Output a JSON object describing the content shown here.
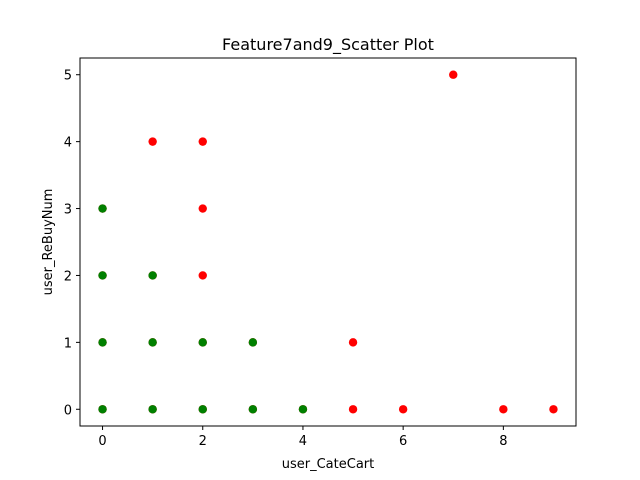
{
  "chart_data": {
    "type": "scatter",
    "title": "Feature7and9_Scatter Plot",
    "xlabel": "user_CateCart",
    "ylabel": "user_ReBuyNum",
    "xlim": [
      -0.45,
      9.45
    ],
    "ylim": [
      -0.25,
      5.25
    ],
    "xticks": [
      0,
      2,
      4,
      6,
      8
    ],
    "yticks": [
      0,
      1,
      2,
      3,
      4,
      5
    ],
    "grid": false,
    "legend": "none",
    "series": [
      {
        "color": "#ff0000",
        "points": [
          [
            0,
            0
          ],
          [
            0,
            1
          ],
          [
            0,
            2
          ],
          [
            0,
            3
          ],
          [
            1,
            0
          ],
          [
            1,
            1
          ],
          [
            1,
            2
          ],
          [
            1,
            4
          ],
          [
            2,
            0
          ],
          [
            2,
            1
          ],
          [
            2,
            2
          ],
          [
            2,
            3
          ],
          [
            2,
            4
          ],
          [
            3,
            0
          ],
          [
            3,
            1
          ],
          [
            4,
            0
          ],
          [
            5,
            0
          ],
          [
            5,
            1
          ],
          [
            6,
            0
          ],
          [
            7,
            5
          ],
          [
            8,
            0
          ],
          [
            9,
            0
          ]
        ]
      },
      {
        "color": "#008000",
        "points": [
          [
            0,
            0
          ],
          [
            0,
            1
          ],
          [
            0,
            2
          ],
          [
            0,
            3
          ],
          [
            1,
            0
          ],
          [
            1,
            1
          ],
          [
            1,
            2
          ],
          [
            2,
            0
          ],
          [
            2,
            1
          ],
          [
            3,
            0
          ],
          [
            3,
            1
          ],
          [
            4,
            0
          ]
        ]
      }
    ]
  }
}
